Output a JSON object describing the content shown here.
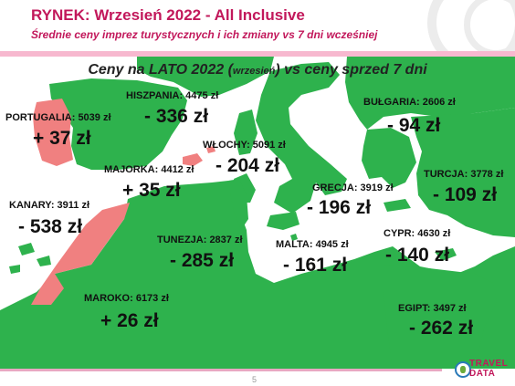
{
  "header": {
    "title": "RYNEK: Wrzesień 2022 - All Inclusive",
    "subtitle": "Średnie ceny imprez turystycznych i ich zmiany vs 7 dni wcześniej"
  },
  "map": {
    "title_main": "Ceny na LATO 2022 (",
    "title_small": "wrzesień",
    "title_rest": ") vs ceny sprzed 7 dni",
    "colors": {
      "increase": "#f08080",
      "decrease": "#2eb24d",
      "sea": "#ffffff"
    }
  },
  "destinations": [
    {
      "id": "portugalia",
      "label": "PORTUGALIA:  5039 zł",
      "change": "+ 37 zł",
      "trend": "increase"
    },
    {
      "id": "hiszpania",
      "label": "HISZPANIA: 4475 zł",
      "change": "- 336 zł",
      "trend": "decrease"
    },
    {
      "id": "majorka",
      "label": "MAJORKA: 4412 zł",
      "change": "+ 35 zł",
      "trend": "increase"
    },
    {
      "id": "wlochy",
      "label": "WŁOCHY: 5091 zł",
      "change": "- 204 zł",
      "trend": "decrease"
    },
    {
      "id": "bulgaria",
      "label": "BUŁGARIA: 2606 zł",
      "change": "- 94 zł",
      "trend": "decrease"
    },
    {
      "id": "turcja",
      "label": "TURCJA: 3778 zł",
      "change": "- 109 zł",
      "trend": "decrease"
    },
    {
      "id": "grecja",
      "label": "GRECJA: 3919 zł",
      "change": "- 196 zł",
      "trend": "decrease"
    },
    {
      "id": "kanary",
      "label": "KANARY: 3911 zł",
      "change": "- 538 zł",
      "trend": "decrease"
    },
    {
      "id": "tunezja",
      "label": "TUNEZJA: 2837 zł",
      "change": "- 285 zł",
      "trend": "decrease"
    },
    {
      "id": "malta",
      "label": "MALTA: 4945 zł",
      "change": "- 161 zł",
      "trend": "decrease"
    },
    {
      "id": "cypr",
      "label": "CYPR: 4630 zł",
      "change": "- 140 zł",
      "trend": "decrease"
    },
    {
      "id": "maroko",
      "label": "MAROKO: 6173 zł",
      "change": "+ 26 zł",
      "trend": "increase"
    },
    {
      "id": "egipt",
      "label": "EGIPT: 3497 zł",
      "change": "- 262 zł",
      "trend": "decrease"
    }
  ],
  "footer": {
    "page_number": "5",
    "logo_line1": "TRAVEL",
    "logo_line2": "DATA"
  }
}
